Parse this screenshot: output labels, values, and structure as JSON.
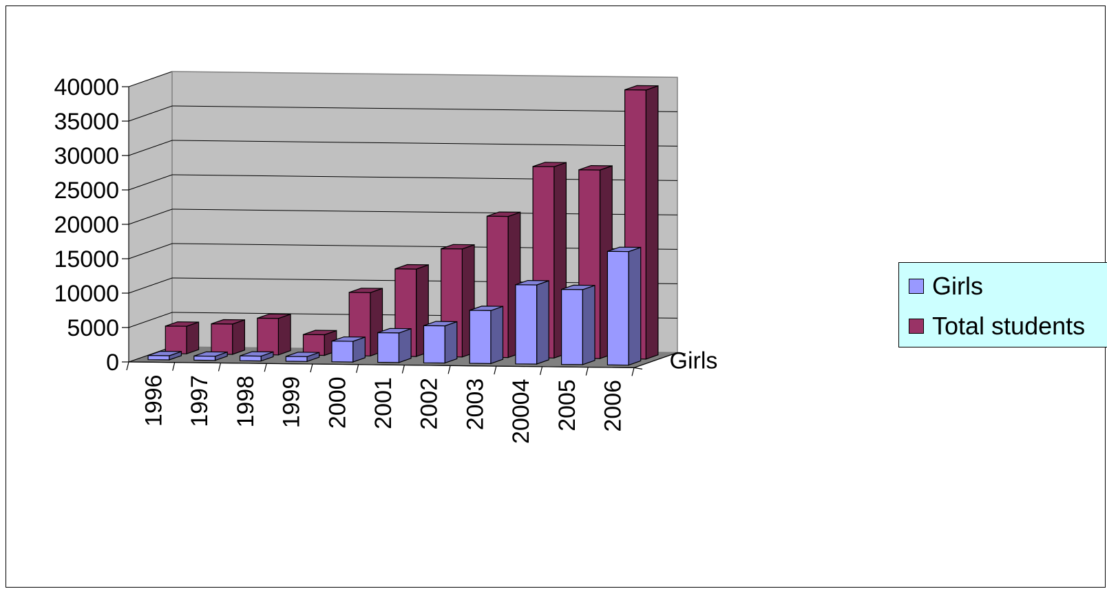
{
  "chart_data": {
    "type": "bar",
    "subtype": "3d-column",
    "title": "",
    "xlabel": "",
    "ylabel": "",
    "depth_label": "Girls",
    "categories": [
      "1996",
      "1997",
      "1998",
      "1999",
      "2000",
      "2001",
      "2002",
      "2003",
      "20004",
      "2005",
      "2006"
    ],
    "ylim": [
      0,
      40000
    ],
    "yticks": [
      "0",
      "5000",
      "10000",
      "15000",
      "20000",
      "25000",
      "30000",
      "35000",
      "40000"
    ],
    "grid": true,
    "legend_position": "right",
    "series": [
      {
        "name": "Girls",
        "color": "#9999ff",
        "values": [
          600,
          600,
          700,
          700,
          3000,
          4300,
          5400,
          7700,
          11500,
          10900,
          16500
        ]
      },
      {
        "name": "Total students",
        "color": "#993366",
        "values": [
          4000,
          4400,
          5300,
          3000,
          9200,
          12700,
          15700,
          20500,
          27800,
          27400,
          39100
        ]
      }
    ],
    "colors": {
      "wall": "#c0c0c0",
      "floor": "#808080",
      "legend_bg": "#ccffff"
    }
  }
}
